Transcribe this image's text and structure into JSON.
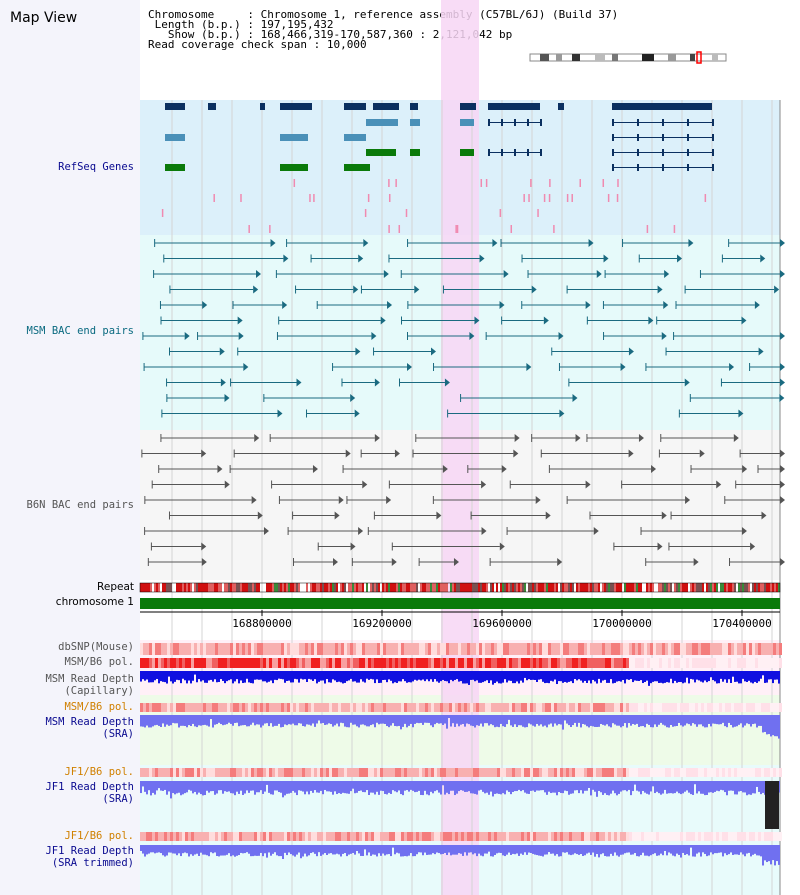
{
  "view": {
    "title": "Map View",
    "chromosome_key": "Chromosome",
    "chromosome_value": "Chromosome 1, reference assembly (C57BL/6J) (Build 37)",
    "length_key": "Length (b.p.)",
    "length_value": "197,195,432",
    "show_key": "Show (b.p.)",
    "show_value": "168,466,319-170,587,360 : 2,121,042 bp",
    "coverage_key": "Read coverage check span",
    "coverage_value": "10,000"
  },
  "tracks": {
    "refseq": "RefSeq Genes",
    "msm_bac": "MSM BAC end pairs",
    "b6n_bac": "B6N BAC end pairs",
    "repeat": "Repeat",
    "chromosome": "chromosome 1",
    "dbsnp": "dbSNP(Mouse)",
    "msm_pol_1": "MSM/B6 pol.",
    "msm_depth_cap": "MSM Read Depth\n(Capillary)",
    "msm_pol_2": "MSM/B6 pol.",
    "msm_depth_sra": "MSM Read Depth\n(SRA)",
    "jf1_pol_1": "JF1/B6 pol.",
    "jf1_depth_sra": "JF1 Read Depth\n(SRA)",
    "jf1_pol_2": "JF1/B6 pol.",
    "jf1_depth_trim": "JF1 Read Depth\n(SRA trimmed)"
  },
  "axis": {
    "ticks": [
      {
        "label": "168800000",
        "bp": 168800000
      },
      {
        "label": "169200000",
        "bp": 169200000
      },
      {
        "label": "169600000",
        "bp": 169600000
      },
      {
        "label": "170000000",
        "bp": 170000000
      },
      {
        "label": "170400000",
        "bp": 170400000
      }
    ]
  },
  "colors": {
    "refseq_bg": "#dcf0fa",
    "msm_bg": "#e6fafa",
    "b6n_bg": "#f6f6f6",
    "highlight": "#f7d6f5",
    "gene_dark": "#0b3060",
    "gene_mid": "#4a90b8",
    "gene_green": "#0a7a0a",
    "msm_line": "#1a6a80",
    "b6n_line": "#555555",
    "repeat_red": "#d01010",
    "chrom_green": "#0a7a0a",
    "depth_blue_dark": "#1010e0",
    "depth_blue_light": "#7070f0",
    "label_navy": "#0a0a90",
    "label_teal": "#0a6a80",
    "label_gray": "#555555",
    "label_orange": "#d08000"
  }
}
